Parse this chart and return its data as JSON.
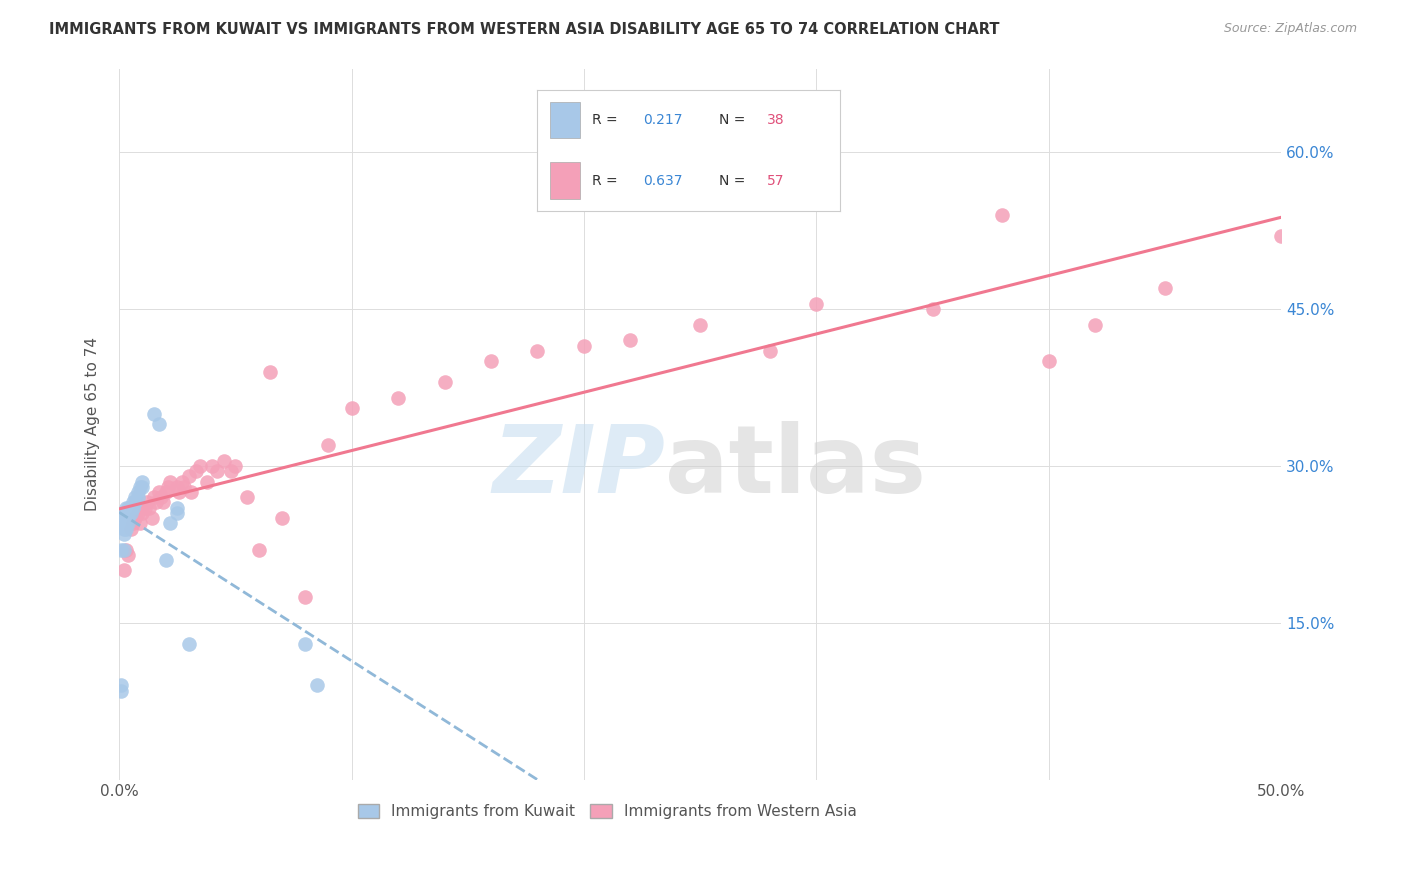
{
  "title": "IMMIGRANTS FROM KUWAIT VS IMMIGRANTS FROM WESTERN ASIA DISABILITY AGE 65 TO 74 CORRELATION CHART",
  "source": "Source: ZipAtlas.com",
  "ylabel": "Disability Age 65 to 74",
  "x_label_kuwait": "Immigrants from Kuwait",
  "x_label_western": "Immigrants from Western Asia",
  "xlim": [
    0.0,
    0.5
  ],
  "ylim": [
    0.0,
    0.68
  ],
  "y_ticks": [
    0.0,
    0.15,
    0.3,
    0.45,
    0.6
  ],
  "R_kuwait": 0.217,
  "N_kuwait": 38,
  "R_western": 0.637,
  "N_western": 57,
  "color_kuwait": "#a8c8e8",
  "color_western": "#f4a0b8",
  "color_r_value": "#3a86d4",
  "color_n_value": "#e0507a",
  "bg_color": "#ffffff",
  "grid_color": "#dddddd",
  "kuwait_x": [
    0.001,
    0.001,
    0.001,
    0.002,
    0.002,
    0.002,
    0.002,
    0.002,
    0.003,
    0.003,
    0.003,
    0.003,
    0.003,
    0.003,
    0.004,
    0.004,
    0.004,
    0.004,
    0.005,
    0.005,
    0.006,
    0.006,
    0.007,
    0.007,
    0.008,
    0.008,
    0.009,
    0.01,
    0.01,
    0.015,
    0.017,
    0.02,
    0.022,
    0.025,
    0.025,
    0.03,
    0.08,
    0.085
  ],
  "kuwait_y": [
    0.085,
    0.09,
    0.22,
    0.22,
    0.235,
    0.24,
    0.245,
    0.255,
    0.24,
    0.245,
    0.25,
    0.255,
    0.255,
    0.26,
    0.245,
    0.25,
    0.255,
    0.26,
    0.255,
    0.26,
    0.26,
    0.265,
    0.265,
    0.27,
    0.27,
    0.275,
    0.28,
    0.28,
    0.285,
    0.35,
    0.34,
    0.21,
    0.245,
    0.255,
    0.26,
    0.13,
    0.13,
    0.09
  ],
  "western_x": [
    0.002,
    0.003,
    0.004,
    0.005,
    0.006,
    0.007,
    0.008,
    0.009,
    0.01,
    0.011,
    0.012,
    0.013,
    0.014,
    0.015,
    0.016,
    0.017,
    0.018,
    0.019,
    0.02,
    0.021,
    0.022,
    0.025,
    0.026,
    0.027,
    0.028,
    0.03,
    0.031,
    0.033,
    0.035,
    0.038,
    0.04,
    0.042,
    0.045,
    0.048,
    0.05,
    0.055,
    0.06,
    0.065,
    0.07,
    0.08,
    0.09,
    0.1,
    0.12,
    0.14,
    0.16,
    0.18,
    0.2,
    0.22,
    0.25,
    0.28,
    0.3,
    0.35,
    0.38,
    0.4,
    0.42,
    0.45,
    0.5
  ],
  "western_y": [
    0.2,
    0.22,
    0.215,
    0.24,
    0.245,
    0.25,
    0.255,
    0.245,
    0.255,
    0.26,
    0.265,
    0.26,
    0.25,
    0.27,
    0.265,
    0.275,
    0.27,
    0.265,
    0.275,
    0.28,
    0.285,
    0.28,
    0.275,
    0.285,
    0.28,
    0.29,
    0.275,
    0.295,
    0.3,
    0.285,
    0.3,
    0.295,
    0.305,
    0.295,
    0.3,
    0.27,
    0.22,
    0.39,
    0.25,
    0.175,
    0.32,
    0.355,
    0.365,
    0.38,
    0.4,
    0.41,
    0.415,
    0.42,
    0.435,
    0.41,
    0.455,
    0.45,
    0.54,
    0.4,
    0.435,
    0.47,
    0.52
  ]
}
